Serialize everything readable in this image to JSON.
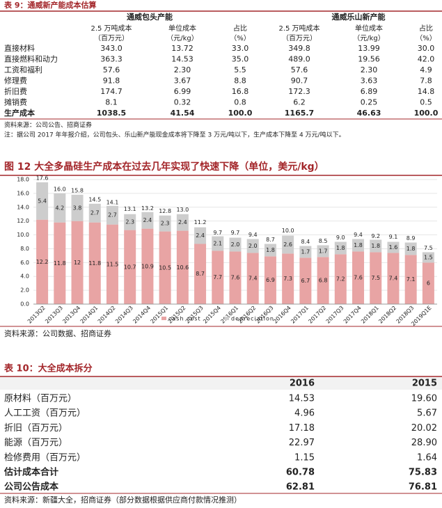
{
  "table9": {
    "title": "表 9：通威新产能成本估算",
    "groups": [
      "通威包头产能",
      "通威乐山新产能"
    ],
    "subheaders": [
      [
        "2.5 万吨成本",
        "（百万元）"
      ],
      [
        "单位成本",
        "（元/kg）"
      ],
      [
        "占比",
        "（%）"
      ],
      [
        "2.5 万吨成本",
        "（百万元）"
      ],
      [
        "单位成本",
        "（元/kg）"
      ],
      [
        "占比",
        "（%）"
      ]
    ],
    "rows": [
      [
        "直接材料",
        "343.0",
        "13.72",
        "33.0",
        "349.8",
        "13.99",
        "30.0"
      ],
      [
        "直接燃料和动力",
        "363.3",
        "14.53",
        "35.0",
        "489.0",
        "19.56",
        "42.0"
      ],
      [
        "工资和福利",
        "57.6",
        "2.30",
        "5.5",
        "57.6",
        "2.30",
        "4.9"
      ],
      [
        "修理费",
        "91.8",
        "3.67",
        "8.8",
        "90.7",
        "3.63",
        "7.8"
      ],
      [
        "折旧费",
        "174.7",
        "6.99",
        "16.8",
        "172.3",
        "6.89",
        "14.8"
      ],
      [
        "摊销费",
        "8.1",
        "0.32",
        "0.8",
        "6.2",
        "0.25",
        "0.5"
      ],
      [
        "生产成本",
        "1038.5",
        "41.54",
        "100.0",
        "1165.7",
        "46.63",
        "100.0"
      ]
    ],
    "source": "资料来源：公司公告、招商证券",
    "note": "注：据公司 2017 年年报介绍，公司包头、乐山新产能现金成本将下降至 3 万元/吨以下，生产成本下降至 4 万元/吨以下。"
  },
  "chart_data": {
    "type": "stacked_bar",
    "title": "图 12  大全多晶硅生产成本在过去几年实现了快速下降（单位，美元/kg）",
    "categories": [
      "2013Q2",
      "2013Q3",
      "2013Q4",
      "2014Q1",
      "2014Q2",
      "2014Q3",
      "2014Q4",
      "2015Q1",
      "2015Q2",
      "2015Q3",
      "2015Q4",
      "2016Q1",
      "2016Q2",
      "2016Q3",
      "2016Q4",
      "2017Q1",
      "2017Q2",
      "2017Q3",
      "2017Q4",
      "2018Q1",
      "2018Q2",
      "2018Q3",
      "2019Q1E"
    ],
    "series": [
      {
        "name": "cash cost",
        "color": "#e8a4a4",
        "values": [
          12.2,
          11.8,
          12.0,
          11.8,
          11.5,
          10.7,
          10.9,
          10.5,
          10.6,
          8.7,
          7.7,
          7.6,
          7.4,
          6.9,
          7.3,
          6.7,
          6.8,
          7.2,
          7.6,
          7.5,
          7.4,
          7.1,
          6.0
        ]
      },
      {
        "name": "depreciation",
        "color": "#cdcdcd",
        "values": [
          5.4,
          4.2,
          3.8,
          2.7,
          2.7,
          2.3,
          2.4,
          2.3,
          2.4,
          2.4,
          2.1,
          2.0,
          2.0,
          1.8,
          2.6,
          1.7,
          1.7,
          1.8,
          1.8,
          1.8,
          1.6,
          1.8,
          1.5
        ],
        "value_labels": [
          "5.4",
          "4.2",
          "3.8",
          "2.7",
          "2.7",
          "2.3",
          "2.4",
          "2.3",
          "2.4",
          "2.4",
          "2.1",
          "2.0",
          "2.0",
          "1.8",
          "2.6",
          "1.7",
          "1.7",
          "1.8",
          "1.8",
          "1.8",
          "1.6",
          "1.8",
          "1.5"
        ]
      }
    ],
    "totals": [
      17.6,
      16.0,
      15.8,
      14.5,
      14.1,
      13.1,
      13.2,
      12.8,
      13.0,
      11.2,
      9.7,
      9.7,
      9.4,
      8.7,
      10.0,
      8.4,
      8.5,
      9.0,
      9.4,
      9.2,
      9.1,
      8.9,
      7.5
    ],
    "total_labels": [
      "17.6",
      "16.0",
      "15.8",
      "14.5",
      "14.1",
      "13.1",
      "13.2",
      "12.8",
      "13.0",
      "11.2",
      "9.7",
      "9.7",
      "9.4",
      "8.7",
      "10.0",
      "8.4",
      "8.5",
      "9.0",
      "9.4",
      "9.2",
      "9.1",
      "8.9",
      "7.5"
    ],
    "ylim": [
      0,
      18
    ],
    "yticks": [
      {
        "value": 0,
        "label": "0.0"
      },
      {
        "value": 2,
        "label": "2.0"
      },
      {
        "value": 4,
        "label": "4.0"
      },
      {
        "value": 6,
        "label": "6.0"
      },
      {
        "value": 8,
        "label": "8.0"
      },
      {
        "value": 10,
        "label": "10.0"
      },
      {
        "value": 12,
        "label": "12.0"
      },
      {
        "value": 14,
        "label": "14.0"
      },
      {
        "value": 16,
        "label": "16.0"
      },
      {
        "value": 18,
        "label": "18.0"
      }
    ],
    "grid": true,
    "legend": "bottom",
    "source": "资料来源：公司数据、招商证券"
  },
  "table10": {
    "title": "表 10：大全成本拆分",
    "columns": [
      "2016",
      "2015"
    ],
    "rows": [
      [
        "原材料（百万元）",
        "14.53",
        "19.60"
      ],
      [
        "人工工资（百万元）",
        "4.96",
        "5.67"
      ],
      [
        "折旧（百万元）",
        "17.18",
        "20.02"
      ],
      [
        "能源（百万元）",
        "22.97",
        "28.90"
      ],
      [
        "检修费用（百万元）",
        "1.15",
        "1.64"
      ],
      [
        "估计成本合计",
        "60.78",
        "75.83"
      ],
      [
        "公司公告成本",
        "62.81",
        "76.81"
      ]
    ],
    "source": "资料来源：新疆大全，招商证券（部分数据根据供应商付款情况推测）"
  }
}
